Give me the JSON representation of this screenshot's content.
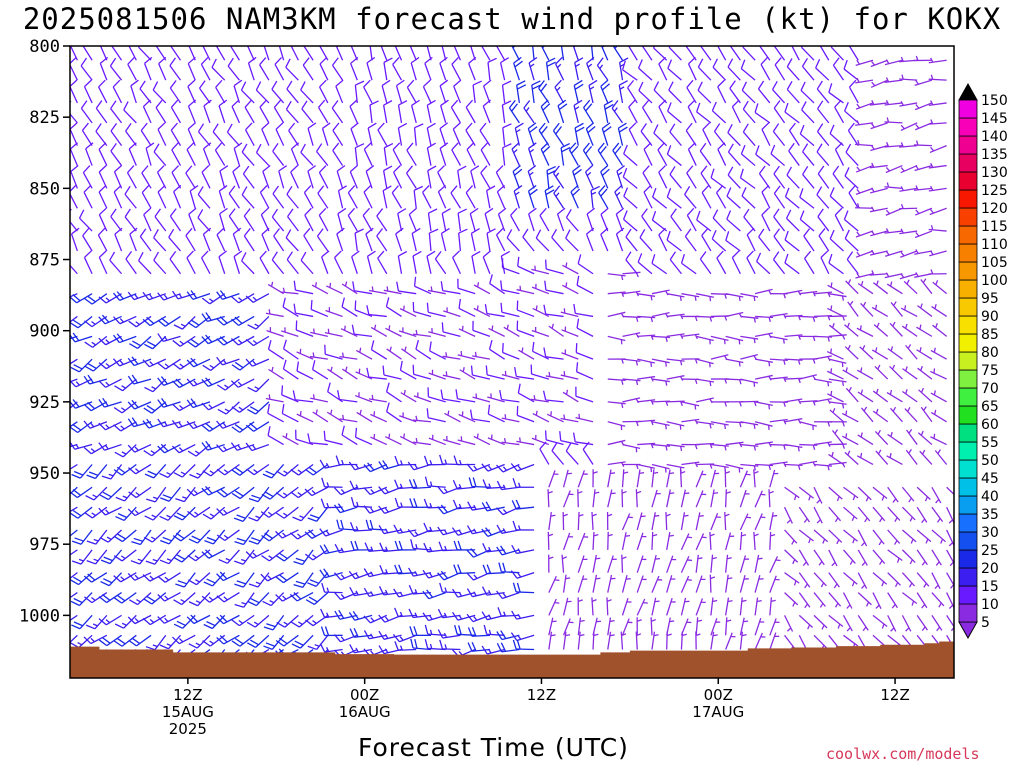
{
  "title": "2025081506 NAM3KM forecast wind profile (kt) for KOKX",
  "credit": "coolwx.com/models",
  "chart_data": {
    "type": "wind-barb-time-height",
    "xlabel": "Forecast Time (UTC)",
    "ylabel": "",
    "y_axis": {
      "unit": "hPa",
      "range": [
        800,
        1022
      ],
      "ticks": [
        800,
        825,
        850,
        875,
        900,
        925,
        950,
        975,
        1000
      ],
      "tick_labels": [
        "800",
        "825",
        "850",
        "875",
        "900",
        "925",
        "950",
        "975",
        "1000"
      ]
    },
    "x_axis": {
      "unit": "forecast hour",
      "range": [
        4,
        64
      ],
      "ticks": [
        {
          "hour": 12,
          "lines": [
            "12Z",
            "15AUG",
            "2025"
          ]
        },
        {
          "hour": 24,
          "lines": [
            "00Z",
            "16AUG"
          ]
        },
        {
          "hour": 36,
          "lines": [
            "12Z"
          ]
        },
        {
          "hour": 48,
          "lines": [
            "00Z",
            "17AUG"
          ]
        },
        {
          "hour": 60,
          "lines": [
            "12Z"
          ]
        }
      ]
    },
    "barb_levels_hpa": [
      805,
      812,
      820,
      827,
      835,
      842,
      850,
      857,
      865,
      872,
      880,
      887,
      895,
      902,
      910,
      917,
      925,
      932,
      940,
      947,
      955,
      962,
      970,
      977,
      985,
      992,
      1000,
      1007,
      1012
    ],
    "surface_pressure": {
      "color": "#a0522d",
      "hours": [
        4,
        6,
        9,
        11,
        18,
        22,
        26,
        30,
        34,
        38,
        40,
        42,
        46,
        48,
        50,
        53,
        56,
        59,
        62,
        63,
        64
      ],
      "hpa": [
        1011,
        1012,
        1012,
        1013,
        1013,
        1013.6,
        1013.8,
        1013.8,
        1013.8,
        1013.8,
        1013,
        1012.4,
        1012.4,
        1012.4,
        1011.6,
        1011.3,
        1010.8,
        1010.3,
        1009.8,
        1009.2,
        1009.2
      ]
    },
    "wind_regions": [
      {
        "name": "upper-early",
        "hours": [
          4,
          22
        ],
        "hpa": [
          800,
          880
        ],
        "dir_deg": 330,
        "speed_kt": [
          10,
          15
        ]
      },
      {
        "name": "upper-mid",
        "hours": [
          22,
          34
        ],
        "hpa": [
          800,
          880
        ],
        "dir_deg": 340,
        "speed_kt": [
          10,
          15
        ]
      },
      {
        "name": "upper-jet",
        "hours": [
          34,
          42
        ],
        "hpa": [
          800,
          860
        ],
        "dir_deg": 340,
        "speed_kt": [
          15,
          25
        ]
      },
      {
        "name": "upper-late",
        "hours": [
          42,
          58
        ],
        "hpa": [
          800,
          880
        ],
        "dir_deg": 320,
        "speed_kt": [
          10,
          15
        ]
      },
      {
        "name": "upper-end",
        "hours": [
          58,
          64
        ],
        "hpa": [
          800,
          880
        ],
        "dir_deg": 260,
        "speed_kt": [
          5,
          10
        ]
      },
      {
        "name": "mid-early",
        "hours": [
          4,
          18
        ],
        "hpa": [
          880,
          940
        ],
        "dir_deg": 240,
        "speed_kt": [
          15,
          25
        ]
      },
      {
        "name": "mid-middle",
        "hours": [
          18,
          40
        ],
        "hpa": [
          880,
          940
        ],
        "dir_deg": 290,
        "speed_kt": [
          8,
          12
        ]
      },
      {
        "name": "mid-late",
        "hours": [
          40,
          56
        ],
        "hpa": [
          880,
          950
        ],
        "dir_deg": 90,
        "speed_kt": [
          5,
          10
        ]
      },
      {
        "name": "mid-end",
        "hours": [
          56,
          64
        ],
        "hpa": [
          880,
          950
        ],
        "dir_deg": 310,
        "speed_kt": [
          5,
          10
        ]
      },
      {
        "name": "low-early",
        "hours": [
          4,
          22
        ],
        "hpa": [
          940,
          1012
        ],
        "dir_deg": 230,
        "speed_kt": [
          15,
          25
        ]
      },
      {
        "name": "low-mid",
        "hours": [
          22,
          36
        ],
        "hpa": [
          940,
          1012
        ],
        "dir_deg": 260,
        "speed_kt": [
          15,
          22
        ]
      },
      {
        "name": "low-late",
        "hours": [
          36,
          52
        ],
        "hpa": [
          950,
          1012
        ],
        "dir_deg": 10,
        "speed_kt": [
          5,
          10
        ]
      },
      {
        "name": "low-end",
        "hours": [
          52,
          64
        ],
        "hpa": [
          950,
          1012
        ],
        "dir_deg": 140,
        "speed_kt": [
          5,
          10
        ]
      }
    ],
    "colorbar": {
      "labels": [
        "5",
        "10",
        "15",
        "20",
        "25",
        "30",
        "35",
        "40",
        "45",
        "50",
        "55",
        "60",
        "65",
        "70",
        "75",
        "80",
        "85",
        "90",
        "95",
        "100",
        "105",
        "110",
        "115",
        "120",
        "125",
        "130",
        "135",
        "140",
        "145",
        "150"
      ],
      "colors": [
        "#8a2be2",
        "#6a1aff",
        "#3c1ef0",
        "#1a28e8",
        "#1450f0",
        "#1870ff",
        "#0a9ef0",
        "#00c0e8",
        "#00e0d0",
        "#00f0b0",
        "#00e080",
        "#20e020",
        "#40f040",
        "#80f040",
        "#c8f020",
        "#f0f000",
        "#f8e000",
        "#f8c800",
        "#f8b000",
        "#f89800",
        "#f88000",
        "#f86800",
        "#f84000",
        "#f81800",
        "#e80030",
        "#e80060",
        "#f00090",
        "#f800b8",
        "#f000e0"
      ]
    }
  }
}
